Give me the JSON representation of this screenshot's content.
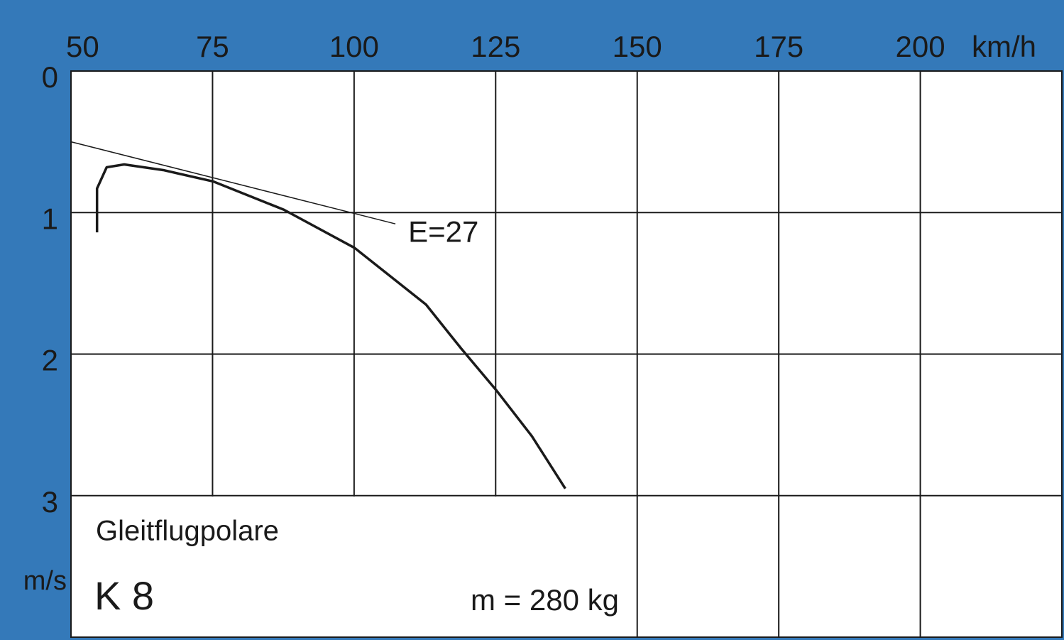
{
  "chart_data": {
    "type": "line",
    "xlim": [
      50,
      225
    ],
    "xticks": [
      50,
      75,
      100,
      125,
      150,
      175,
      200
    ],
    "x_unit": "km/h",
    "ylim": [
      0,
      4
    ],
    "yticks": [
      0,
      1,
      2,
      3
    ],
    "y_unit": "m/s",
    "y_inverted": true,
    "grid": true,
    "series": [
      {
        "name": "Gleitflugpolare",
        "color": "#1a1a1a",
        "x": [
          54.6,
          54.6,
          56.3,
          59.4,
          66.3,
          75.1,
          87.6,
          100.1,
          112.7,
          118.9,
          125.2,
          131.4,
          137.3
        ],
        "values": [
          1.14,
          0.83,
          0.68,
          0.66,
          0.7,
          0.78,
          0.98,
          1.25,
          1.65,
          1.96,
          2.26,
          2.58,
          2.95
        ]
      },
      {
        "name": "E=27",
        "color": "#1a1a1a",
        "x": [
          50,
          107.3
        ],
        "values": [
          0.5,
          1.08
        ]
      }
    ],
    "title": "K 8",
    "subtitle": "m = 280 kg"
  }
}
